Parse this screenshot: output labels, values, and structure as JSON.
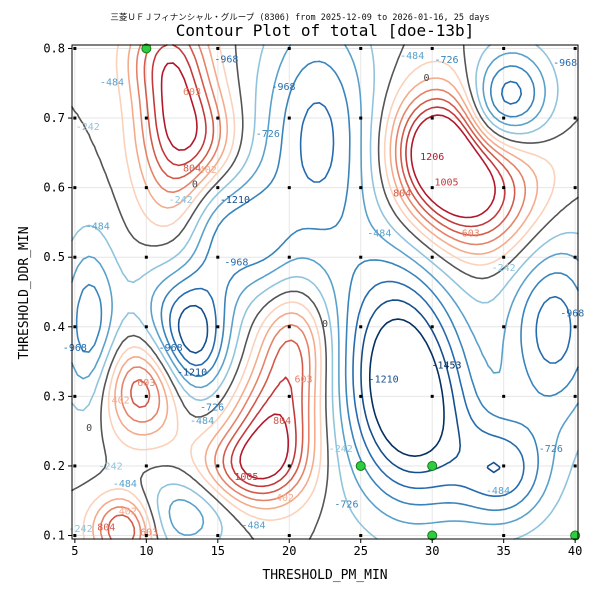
{
  "chart_data": {
    "type": "contour",
    "suptitle": "三菱ＵＦＪフィナンシャル・グループ (8306) from 2025-12-09 to 2026-01-16, 25 days",
    "title": "Contour Plot of total [doe-13b]",
    "xlabel": "THRESHOLD_PM_MIN",
    "ylabel": "THRESHOLD_DDR_MIN",
    "xlim": [
      4.8,
      40.2
    ],
    "ylim": [
      0.095,
      0.805
    ],
    "xticks": [
      5,
      10,
      15,
      20,
      25,
      30,
      35,
      40
    ],
    "yticks": [
      0.1,
      0.2,
      0.3,
      0.4,
      0.5,
      0.6,
      0.7,
      0.8
    ],
    "xtick_labels": [
      "5",
      "10",
      "15",
      "20",
      "25",
      "30",
      "35",
      "40"
    ],
    "ytick_labels": [
      "0.1",
      "0.2",
      "0.3",
      "0.4",
      "0.5",
      "0.6",
      "0.7",
      "0.8"
    ],
    "grid": true,
    "colormap": "RdBu_r",
    "levels": [
      -1453,
      -1210,
      -968,
      -726,
      -484,
      -242,
      0,
      201,
      402,
      603,
      804,
      1005,
      1206
    ],
    "contour_labels": [
      {
        "value": "1206",
        "x": 30.0,
        "y": 0.645
      },
      {
        "value": "1005",
        "x": 31.0,
        "y": 0.608
      },
      {
        "value": "804",
        "x": 27.9,
        "y": 0.592
      },
      {
        "value": "603",
        "x": 32.7,
        "y": 0.535
      },
      {
        "value": "-242",
        "x": 35.0,
        "y": 0.485
      },
      {
        "value": "-484",
        "x": 26.3,
        "y": 0.535
      },
      {
        "value": "-484",
        "x": 28.6,
        "y": 0.79
      },
      {
        "value": "-726",
        "x": 31.0,
        "y": 0.784
      },
      {
        "value": "0",
        "x": 29.6,
        "y": 0.758
      },
      {
        "value": "-968",
        "x": 39.3,
        "y": 0.78
      },
      {
        "value": "-968",
        "x": 19.6,
        "y": 0.745
      },
      {
        "value": "-968",
        "x": 15.6,
        "y": 0.785
      },
      {
        "value": "-968",
        "x": 16.3,
        "y": 0.493
      },
      {
        "value": "-968",
        "x": 39.8,
        "y": 0.42
      },
      {
        "value": "-968",
        "x": 5.0,
        "y": 0.37
      },
      {
        "value": "-968",
        "x": 11.7,
        "y": 0.37
      },
      {
        "value": "-726",
        "x": 18.5,
        "y": 0.678
      },
      {
        "value": "-1210",
        "x": 16.2,
        "y": 0.583
      },
      {
        "value": "-1210",
        "x": 13.2,
        "y": 0.335
      },
      {
        "value": "-1210",
        "x": 26.6,
        "y": 0.325
      },
      {
        "value": "-1453",
        "x": 31.0,
        "y": 0.345
      },
      {
        "value": "-242",
        "x": 12.4,
        "y": 0.583
      },
      {
        "value": "-484",
        "x": 6.6,
        "y": 0.545
      },
      {
        "value": "-242",
        "x": 5.9,
        "y": 0.688
      },
      {
        "value": "-484",
        "x": 7.6,
        "y": 0.752
      },
      {
        "value": "603",
        "x": 13.2,
        "y": 0.738
      },
      {
        "value": "804",
        "x": 13.2,
        "y": 0.628
      },
      {
        "value": "402",
        "x": 14.3,
        "y": 0.626
      },
      {
        "value": "0",
        "x": 13.4,
        "y": 0.605
      },
      {
        "value": "603",
        "x": 21.0,
        "y": 0.325
      },
      {
        "value": "804",
        "x": 19.5,
        "y": 0.265
      },
      {
        "value": "1005",
        "x": 17.0,
        "y": 0.185
      },
      {
        "value": "402",
        "x": 19.7,
        "y": 0.155
      },
      {
        "value": "-484",
        "x": 17.5,
        "y": 0.115
      },
      {
        "value": "-242",
        "x": 23.6,
        "y": 0.225
      },
      {
        "value": "-726",
        "x": 24.0,
        "y": 0.145
      },
      {
        "value": "0",
        "x": 22.5,
        "y": 0.405
      },
      {
        "value": "603",
        "x": 10.0,
        "y": 0.32
      },
      {
        "value": "402",
        "x": 8.2,
        "y": 0.295
      },
      {
        "value": "-484",
        "x": 13.9,
        "y": 0.265
      },
      {
        "value": "-726",
        "x": 14.6,
        "y": 0.285
      },
      {
        "value": "0",
        "x": 6.0,
        "y": 0.255
      },
      {
        "value": "-242",
        "x": 7.5,
        "y": 0.2
      },
      {
        "value": "-484",
        "x": 8.5,
        "y": 0.175
      },
      {
        "value": "402",
        "x": 8.7,
        "y": 0.135
      },
      {
        "value": "804",
        "x": 7.2,
        "y": 0.112
      },
      {
        "value": "603",
        "x": 10.2,
        "y": 0.105
      },
      {
        "value": "-242",
        "x": 5.4,
        "y": 0.11
      },
      {
        "value": "-726",
        "x": 38.3,
        "y": 0.225
      },
      {
        "value": "-484",
        "x": 34.6,
        "y": 0.165
      }
    ],
    "doe_points": {
      "x": [
        5,
        5,
        5,
        5,
        5,
        5,
        5,
        5,
        10,
        10,
        10,
        10,
        10,
        10,
        10,
        15,
        15,
        15,
        15,
        15,
        15,
        15,
        15,
        20,
        20,
        20,
        20,
        20,
        20,
        20,
        20,
        25,
        25,
        25,
        25,
        25,
        25,
        25,
        30,
        30,
        30,
        30,
        30,
        30,
        30,
        35,
        35,
        35,
        35,
        35,
        35,
        35,
        35,
        40,
        40,
        40,
        40,
        40,
        40,
        40
      ],
      "y": [
        0.1,
        0.2,
        0.3,
        0.4,
        0.5,
        0.6,
        0.7,
        0.8,
        0.1,
        0.2,
        0.4,
        0.5,
        0.6,
        0.7,
        0.3,
        0.1,
        0.2,
        0.3,
        0.4,
        0.5,
        0.6,
        0.7,
        0.8,
        0.1,
        0.2,
        0.3,
        0.4,
        0.5,
        0.6,
        0.7,
        0.8,
        0.1,
        0.3,
        0.4,
        0.5,
        0.6,
        0.7,
        0.8,
        0.3,
        0.4,
        0.5,
        0.6,
        0.7,
        0.8,
        0.2,
        0.1,
        0.2,
        0.3,
        0.4,
        0.5,
        0.6,
        0.7,
        0.8,
        0.2,
        0.3,
        0.4,
        0.5,
        0.6,
        0.7,
        0.8
      ]
    },
    "highlight_points": {
      "x": [
        10,
        25,
        30,
        30,
        40
      ],
      "y": [
        0.8,
        0.2,
        0.2,
        0.1,
        0.1
      ],
      "color": "#2ecc40"
    }
  }
}
